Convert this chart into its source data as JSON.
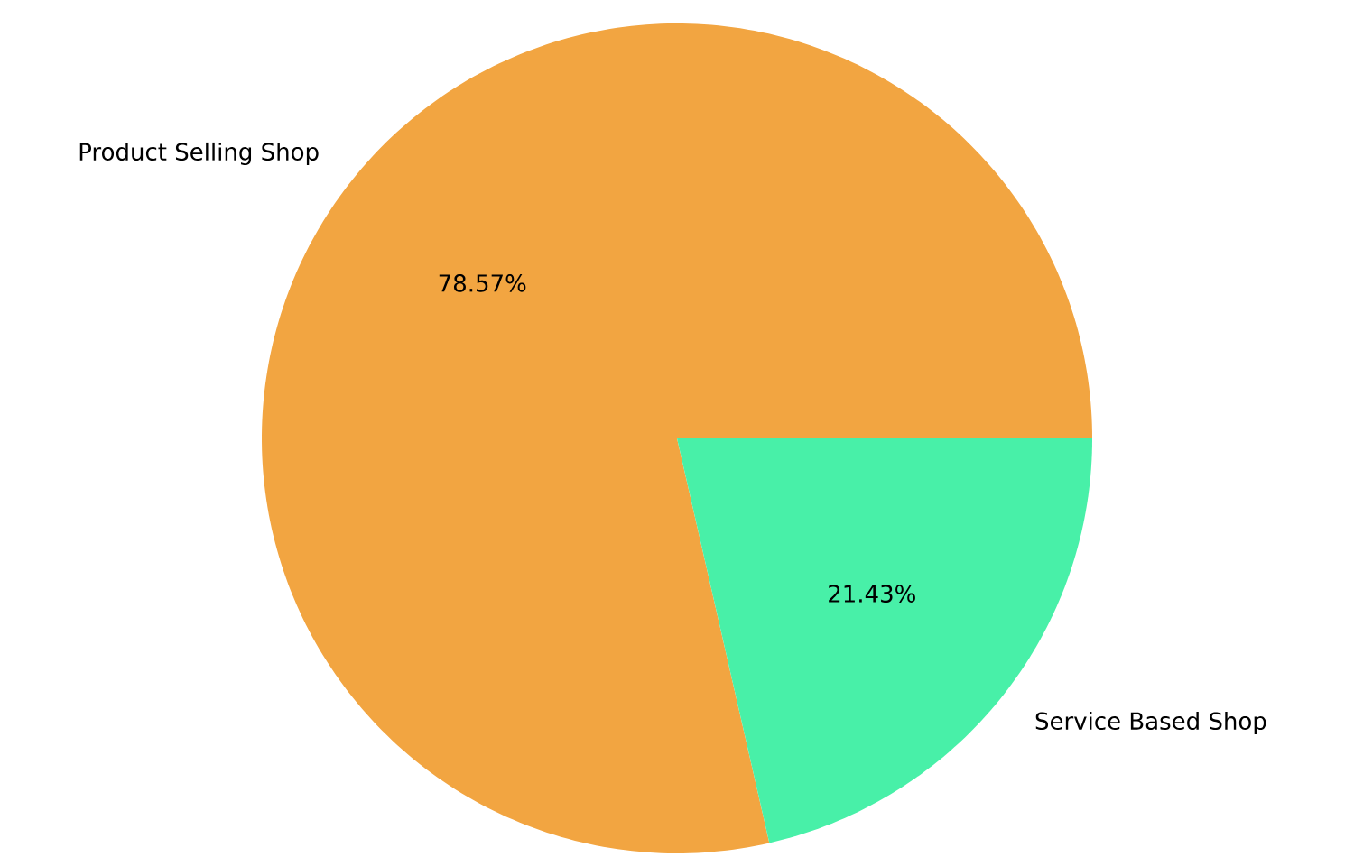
{
  "chart_data": {
    "type": "pie",
    "categories": [
      "Product Selling Shop",
      "Service Based Shop"
    ],
    "values": [
      78.57,
      21.43
    ],
    "colors": [
      "#f2a541",
      "#48f0a8"
    ],
    "value_labels": [
      "78.57%",
      "21.43%"
    ]
  }
}
